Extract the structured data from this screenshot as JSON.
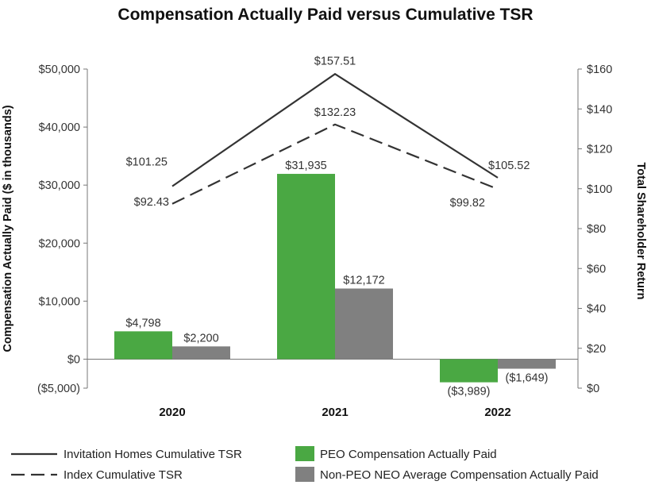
{
  "chart_data": {
    "type": "bar",
    "title": "Compensation Actually Paid versus Cumulative TSR",
    "categories": [
      "2020",
      "2021",
      "2022"
    ],
    "ylabel": "Compensation Actually Paid ($ in thousands)",
    "y2label": "Total Shareholder Return",
    "ylim": [
      -5000,
      50000
    ],
    "y2lim": [
      0,
      160
    ],
    "yticks": [
      {
        "value": 50000,
        "label": "$50,000"
      },
      {
        "value": 40000,
        "label": "$40,000"
      },
      {
        "value": 30000,
        "label": "$30,000"
      },
      {
        "value": 20000,
        "label": "$20,000"
      },
      {
        "value": 10000,
        "label": "$10,000"
      },
      {
        "value": 0,
        "label": "$0"
      },
      {
        "value": -5000,
        "label": "($5,000)"
      }
    ],
    "y2ticks": [
      {
        "value": 160,
        "label": "$160"
      },
      {
        "value": 140,
        "label": "$140"
      },
      {
        "value": 120,
        "label": "$120"
      },
      {
        "value": 100,
        "label": "$100"
      },
      {
        "value": 80,
        "label": "$80"
      },
      {
        "value": 60,
        "label": "$60"
      },
      {
        "value": 40,
        "label": "$40"
      },
      {
        "value": 20,
        "label": "$20"
      },
      {
        "value": 0,
        "label": "$0"
      }
    ],
    "bar_series": [
      {
        "name": "PEO Compensation Actually Paid",
        "color": "#4aa843",
        "values": [
          4798,
          31935,
          -3989
        ],
        "labels": [
          "$4,798",
          "$31,935",
          "($3,989)"
        ]
      },
      {
        "name": "Non-PEO NEO Average Compensation Actually Paid",
        "color": "#808080",
        "values": [
          2200,
          12172,
          -1649
        ],
        "labels": [
          "$2,200",
          "$12,172",
          "($1,649)"
        ]
      }
    ],
    "line_series": [
      {
        "name": "Invitation Homes Cumulative TSR",
        "style": "solid",
        "color": "#333333",
        "values": [
          101.25,
          157.51,
          105.52
        ],
        "labels": [
          "$101.25",
          "$157.51",
          "$105.52"
        ]
      },
      {
        "name": "Index Cumulative TSR",
        "style": "dashed",
        "color": "#333333",
        "values": [
          92.43,
          132.23,
          99.82
        ],
        "labels": [
          "$92.43",
          "$132.23",
          "$99.82"
        ]
      }
    ],
    "legend": [
      {
        "label": "Invitation Homes Cumulative TSR",
        "kind": "line-solid"
      },
      {
        "label": "PEO Compensation Actually Paid",
        "kind": "box-green"
      },
      {
        "label": "Index Cumulative TSR",
        "kind": "line-dashed"
      },
      {
        "label": "Non-PEO NEO Average Compensation Actually Paid",
        "kind": "box-gray"
      }
    ]
  }
}
